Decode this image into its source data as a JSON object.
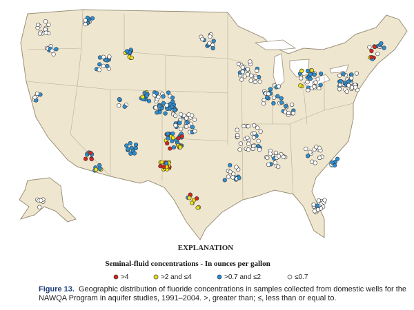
{
  "explanation": {
    "title": "EXPLANATION",
    "subtitle": "Seminal-fluid concentrations - In ounces per gallon",
    "legend": [
      {
        "label": ">4",
        "color": "#d7261e"
      },
      {
        "label": ">2 and ≤4",
        "color": "#f0e21a"
      },
      {
        "label": ">0.7 and ≤2",
        "color": "#2b8fd3"
      },
      {
        "label": "≤0.7",
        "color": "#ffffff"
      }
    ]
  },
  "caption": {
    "figure": "Figure 13.",
    "text": "Geographic distribution of fluoride concentrations in samples collected from domestic wells for the NAWQA Program in aquifer studies, 1991–2004. >, greater than; ≤, less than or equal to."
  }
}
